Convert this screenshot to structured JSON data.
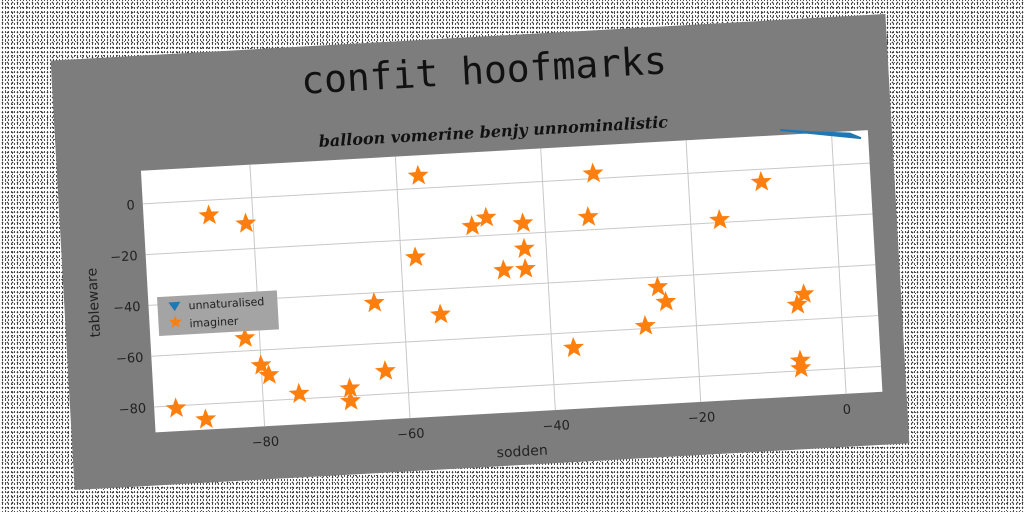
{
  "chart_data": {
    "type": "scatter",
    "title": "confit hoofmarks",
    "subtitle": "balloon vomerine benjy unnominalistic",
    "xlabel": "sodden",
    "ylabel": "tableware",
    "xlim": [
      -95,
      5
    ],
    "ylim": [
      -90,
      13
    ],
    "xticks": [
      -80,
      -60,
      -40,
      -20,
      0
    ],
    "yticks": [
      0,
      -20,
      -40,
      -60,
      -80
    ],
    "x_tick_labels": [
      "−80",
      "−60",
      "−40",
      "−20",
      "0"
    ],
    "y_tick_labels": [
      "0",
      "−20",
      "−40",
      "−60",
      "−80"
    ],
    "grid": true,
    "legend_position": "center-left",
    "series": [
      {
        "name": "unnaturalised",
        "marker": "triangle-down",
        "color": "#1f77b4",
        "points": [
          [
            -7,
            15
          ],
          [
            -3,
            13.5
          ],
          [
            2.5,
            12
          ],
          [
            4,
            10
          ]
        ]
      },
      {
        "name": "imaginer",
        "marker": "star",
        "color": "#ff7f0e",
        "points": [
          [
            -86,
            -6
          ],
          [
            -81,
            -10
          ],
          [
            -57,
            5
          ],
          [
            -33,
            2
          ],
          [
            -10,
            -5
          ],
          [
            -50,
            -16
          ],
          [
            -48,
            -13
          ],
          [
            -43,
            -16
          ],
          [
            -34,
            -15
          ],
          [
            -16,
            -19
          ],
          [
            -58,
            -27
          ],
          [
            -43,
            -26
          ],
          [
            -46,
            -34
          ],
          [
            -43,
            -34
          ],
          [
            -64,
            -44
          ],
          [
            -55,
            -50
          ],
          [
            -25,
            -44
          ],
          [
            -24,
            -50
          ],
          [
            -5,
            -50
          ],
          [
            -6,
            -54
          ],
          [
            -82,
            -55
          ],
          [
            -27,
            -59
          ],
          [
            -37,
            -66
          ],
          [
            -80,
            -66
          ],
          [
            -79,
            -70
          ],
          [
            -63,
            -71
          ],
          [
            -68,
            -77
          ],
          [
            -75,
            -78
          ],
          [
            -68,
            -82
          ],
          [
            -6,
            -76
          ],
          [
            -6,
            -79
          ],
          [
            -92,
            -81
          ],
          [
            -88,
            -86
          ]
        ]
      }
    ]
  }
}
